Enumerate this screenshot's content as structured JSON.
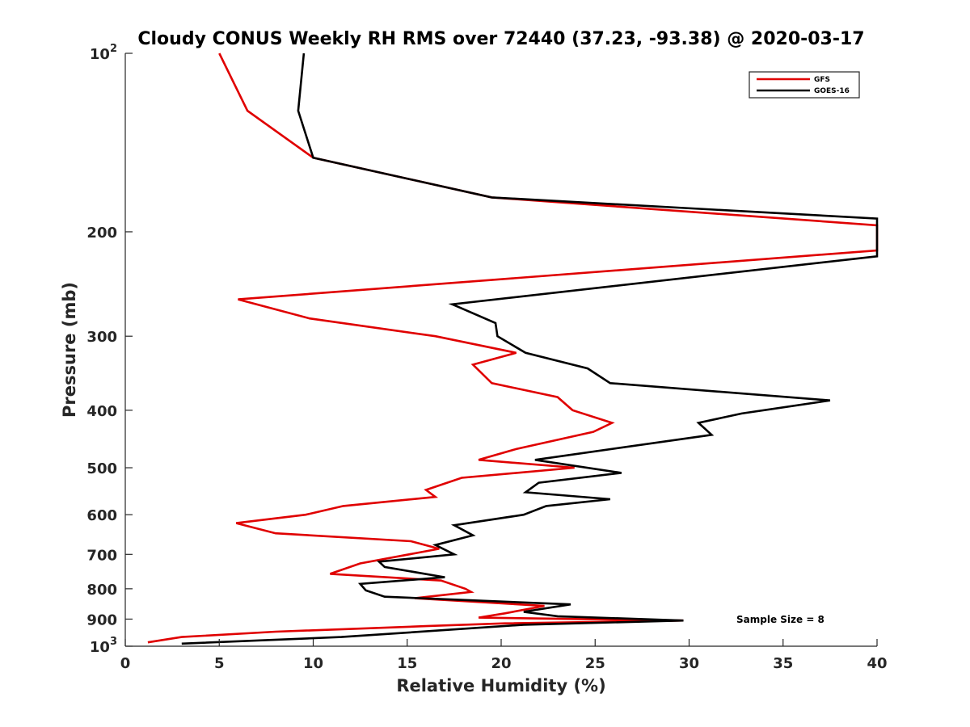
{
  "chart_data": {
    "type": "line",
    "title": "Cloudy CONUS Weekly RH RMS over 72440 (37.23, -93.38) @ 2020-03-17",
    "xlabel": "Relative Humidity (%)",
    "ylabel": "Pressure (mb)",
    "xlim": [
      0,
      40
    ],
    "ylim": [
      100,
      1000
    ],
    "y_scale": "log",
    "y_reversed": true,
    "grid": false,
    "x_ticks": [
      "0",
      "5",
      "10",
      "15",
      "20",
      "25",
      "30",
      "35",
      "40"
    ],
    "y_ticks": [
      {
        "value": 100,
        "base": "10",
        "exp": "2"
      },
      {
        "value": 200,
        "label": "200"
      },
      {
        "value": 300,
        "label": "300"
      },
      {
        "value": 400,
        "label": "400"
      },
      {
        "value": 500,
        "label": "500"
      },
      {
        "value": 600,
        "label": "600"
      },
      {
        "value": 700,
        "label": "700"
      },
      {
        "value": 800,
        "label": "800"
      },
      {
        "value": 900,
        "label": "900"
      },
      {
        "value": 1000,
        "base": "10",
        "exp": "3"
      }
    ],
    "legend_position": "top-right",
    "annotation": "Sample Size = 8",
    "series": [
      {
        "name": "GFS",
        "color": "#e00000",
        "points": [
          [
            5.0,
            100
          ],
          [
            6.5,
            125
          ],
          [
            10.0,
            150
          ],
          [
            19.5,
            175
          ],
          [
            40.0,
            195
          ],
          [
            40.0,
            195
          ],
          [
            40.0,
            215
          ],
          [
            6.0,
            260
          ],
          [
            9.8,
            280
          ],
          [
            16.5,
            300
          ],
          [
            20.8,
            320
          ],
          [
            18.5,
            335
          ],
          [
            19.5,
            360
          ],
          [
            23.0,
            380
          ],
          [
            23.8,
            400
          ],
          [
            25.9,
            420
          ],
          [
            24.9,
            435
          ],
          [
            20.8,
            465
          ],
          [
            18.8,
            485
          ],
          [
            23.9,
            500
          ],
          [
            17.9,
            520
          ],
          [
            16.0,
            545
          ],
          [
            16.5,
            560
          ],
          [
            11.6,
            580
          ],
          [
            9.6,
            600
          ],
          [
            5.9,
            620
          ],
          [
            8.0,
            645
          ],
          [
            15.2,
            665
          ],
          [
            16.7,
            685
          ],
          [
            12.5,
            725
          ],
          [
            10.9,
            755
          ],
          [
            16.8,
            775
          ],
          [
            18.1,
            800
          ],
          [
            18.4,
            810
          ],
          [
            15.4,
            830
          ],
          [
            22.3,
            855
          ],
          [
            20.2,
            880
          ],
          [
            18.8,
            895
          ],
          [
            29.7,
            905
          ],
          [
            20.2,
            915
          ],
          [
            16.0,
            925
          ],
          [
            8.0,
            945
          ],
          [
            3.0,
            965
          ],
          [
            1.2,
            985
          ]
        ]
      },
      {
        "name": "GOES-16",
        "color": "#000000",
        "points": [
          [
            9.5,
            100
          ],
          [
            9.2,
            125
          ],
          [
            10.0,
            150
          ],
          [
            19.5,
            175
          ],
          [
            40.0,
            190
          ],
          [
            40.0,
            190
          ],
          [
            40.0,
            220
          ],
          [
            17.4,
            265
          ],
          [
            19.7,
            285
          ],
          [
            19.8,
            300
          ],
          [
            21.3,
            320
          ],
          [
            24.6,
            340
          ],
          [
            25.8,
            360
          ],
          [
            37.5,
            385
          ],
          [
            32.8,
            405
          ],
          [
            30.5,
            420
          ],
          [
            31.2,
            440
          ],
          [
            21.8,
            485
          ],
          [
            26.4,
            510
          ],
          [
            22.0,
            530
          ],
          [
            21.3,
            550
          ],
          [
            25.8,
            565
          ],
          [
            22.4,
            580
          ],
          [
            21.2,
            600
          ],
          [
            17.5,
            625
          ],
          [
            18.5,
            650
          ],
          [
            16.5,
            675
          ],
          [
            17.5,
            700
          ],
          [
            13.5,
            720
          ],
          [
            13.8,
            735
          ],
          [
            17.0,
            765
          ],
          [
            12.5,
            785
          ],
          [
            12.8,
            805
          ],
          [
            13.8,
            825
          ],
          [
            23.7,
            850
          ],
          [
            21.2,
            875
          ],
          [
            23.0,
            890
          ],
          [
            29.7,
            905
          ],
          [
            21.2,
            920
          ],
          [
            11.5,
            965
          ],
          [
            3.0,
            990
          ]
        ]
      }
    ]
  }
}
